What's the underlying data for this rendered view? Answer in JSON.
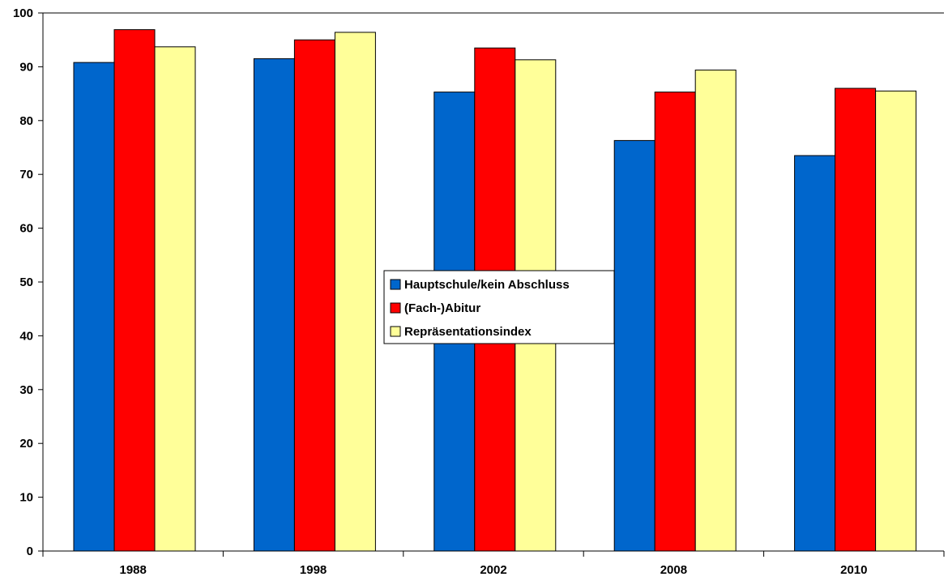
{
  "chart_data": {
    "type": "bar",
    "title": "",
    "xlabel": "",
    "ylabel": "",
    "categories": [
      "1988",
      "1998",
      "2002",
      "2008",
      "2010"
    ],
    "series": [
      {
        "name": "Hauptschule/kein Abschluss",
        "color": "#0066cc",
        "values": [
          90.8,
          91.5,
          85.3,
          76.3,
          73.5
        ]
      },
      {
        "name": "(Fach-)Abitur",
        "color": "#ff0000",
        "values": [
          96.9,
          95.0,
          93.5,
          85.3,
          86.0
        ]
      },
      {
        "name": "Repräsentationsindex",
        "color": "#ffff99",
        "values": [
          93.7,
          96.4,
          91.3,
          89.4,
          85.5
        ]
      }
    ],
    "ylim": [
      0,
      100
    ],
    "yticks": [
      0,
      10,
      20,
      30,
      40,
      50,
      60,
      70,
      80,
      90,
      100
    ],
    "grid": false,
    "legend_position": "center"
  }
}
